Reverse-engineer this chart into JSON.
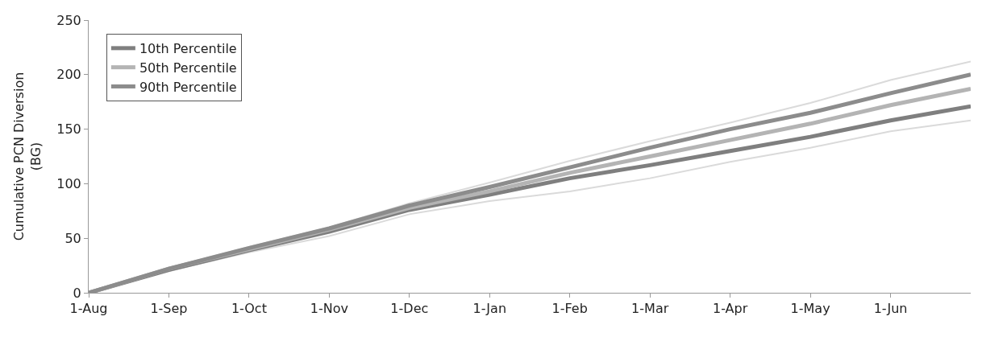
{
  "chart_data": {
    "type": "line",
    "ylabel": "Cumulative PCN Diversion (BG)",
    "categories": [
      "1-Aug",
      "1-Sep",
      "1-Oct",
      "1-Nov",
      "1-Dec",
      "1-Jan",
      "1-Feb",
      "1-Mar",
      "1-Apr",
      "1-May",
      "1-Jun",
      null
    ],
    "series": [
      {
        "color": "#dadada",
        "values": [
          0,
          23,
          42,
          60,
          82,
          101,
          121,
          139,
          156,
          174,
          195,
          212
        ]
      },
      {
        "color": "#dadada",
        "values": [
          0,
          20,
          37,
          52,
          72,
          84,
          93,
          105,
          120,
          133,
          148,
          158
        ]
      },
      {
        "name": "10th Percentile",
        "color": "#7f7f7f",
        "values": [
          0,
          21,
          39,
          56,
          76,
          90,
          105,
          117,
          130,
          143,
          158,
          171
        ]
      },
      {
        "name": "50th Percentile",
        "color": "#b4b4b4",
        "values": [
          0,
          22,
          40,
          58,
          78,
          93,
          110,
          125,
          140,
          155,
          172,
          187
        ]
      },
      {
        "name": "90th Percentile",
        "color": "#8c8c8c",
        "values": [
          0,
          22,
          41,
          59,
          80,
          97,
          115,
          133,
          150,
          165,
          183,
          200
        ]
      }
    ],
    "ylim": [
      0,
      250
    ],
    "yticks": [
      0,
      50,
      100,
      150,
      200,
      250
    ],
    "legend": "top left",
    "marker": "none",
    "line_style": "solid"
  }
}
